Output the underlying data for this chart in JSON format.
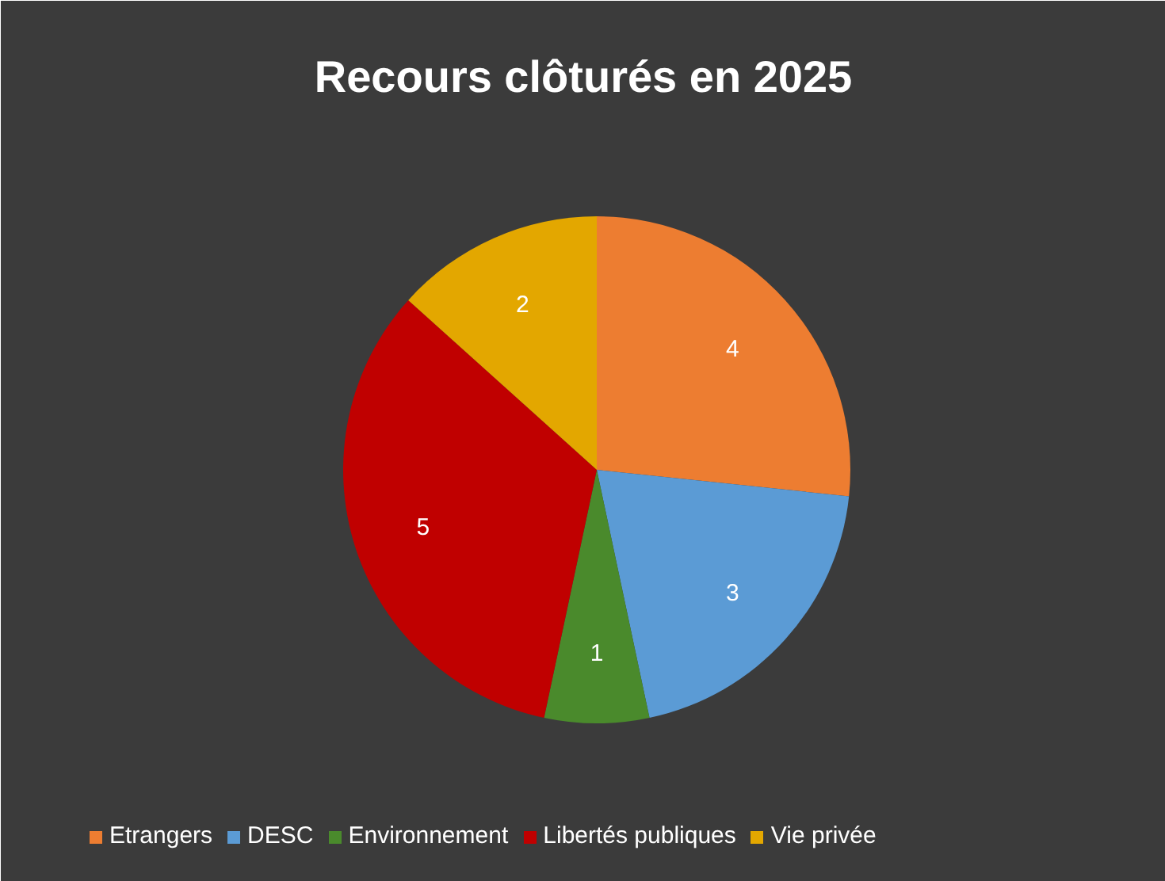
{
  "chart_data": {
    "type": "pie",
    "title": "Recours clôturés en 2025",
    "categories": [
      "Etrangers",
      "DESC",
      "Environnement",
      "Libertés publiques",
      "Vie privée"
    ],
    "values": [
      4,
      3,
      1,
      5,
      2
    ],
    "colors": [
      "#ed7d31",
      "#5b9bd5",
      "#4a8a2c",
      "#c00000",
      "#e3a700"
    ],
    "data_labels": true,
    "legend": "bottom"
  }
}
